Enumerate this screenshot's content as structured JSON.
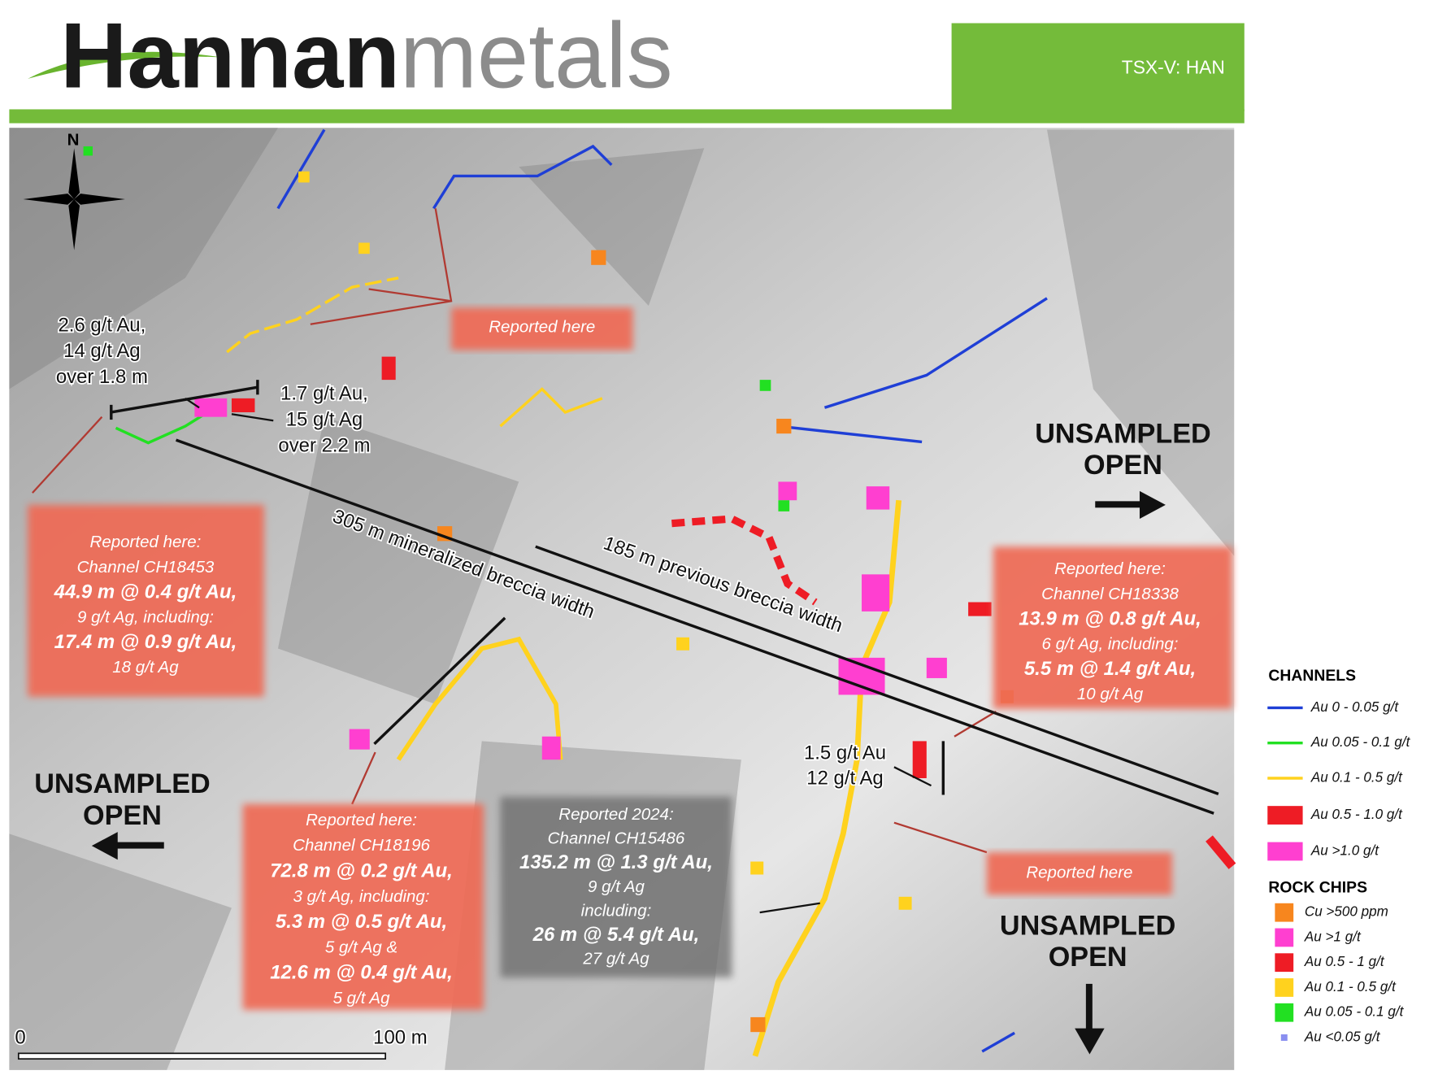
{
  "header": {
    "logo_bold": "Hannan",
    "logo_light": "metals",
    "ticker": "TSX-V: HAN"
  },
  "north": "N",
  "assays": [
    {
      "lines": [
        "2.6 g/t Au,",
        "14 g/t Ag",
        "over 1.8 m"
      ]
    },
    {
      "lines": [
        "1.7 g/t Au,",
        "15 g/t Ag",
        "over 2.2 m"
      ]
    },
    {
      "lines": [
        "1.5 g/t Au",
        "12 g/t Ag"
      ]
    }
  ],
  "reported": [
    {
      "lines": [
        "Reported here"
      ]
    },
    {
      "lines": [
        "Reported here:",
        "Channel CH18453",
        "44.9 m @ 0.4 g/t Au,",
        "9 g/t Ag, including:",
        "17.4 m @ 0.9 g/t Au,",
        "18 g/t Ag"
      ]
    },
    {
      "lines": [
        "Reported here:",
        "Channel CH18338",
        "13.9 m @ 0.8 g/t Au,",
        "6 g/t Ag, including:",
        "5.5 m @ 1.4 g/t Au,",
        "10 g/t Ag"
      ]
    },
    {
      "lines": [
        "Reported here:",
        "Channel CH18196",
        "72.8 m @ 0.2 g/t Au,",
        "3 g/t Ag, including:",
        "5.3 m @ 0.5 g/t Au,",
        "5 g/t Ag &",
        "12.6 m @ 0.4 g/t Au,",
        "5 g/t Ag"
      ]
    },
    {
      "lines": [
        "Reported 2024:",
        "Channel CH15486",
        "135.2 m @ 1.3 g/t Au,",
        "9 g/t Ag",
        "including:",
        "26 m @ 5.4 g/t Au,",
        "27 g/t Ag"
      ]
    },
    {
      "lines": [
        "Reported here"
      ]
    }
  ],
  "widths": [
    "305 m mineralized breccia width",
    "185 m previous breccia width"
  ],
  "open_labels": [
    {
      "lines": [
        "UNSAMPLED",
        "OPEN"
      ]
    },
    {
      "lines": [
        "UNSAMPLED",
        "OPEN"
      ]
    },
    {
      "lines": [
        "UNSAMPLED",
        "OPEN"
      ]
    }
  ],
  "legend": {
    "channels_title": "CHANNELS",
    "channels": [
      {
        "label": "Au 0 - 0.05 g/t",
        "color": "#1f3fd6"
      },
      {
        "label": "Au 0.05 - 0.1 g/t",
        "color": "#22e022"
      },
      {
        "label": "Au 0.1 - 0.5 g/t",
        "color": "#ffd21e"
      },
      {
        "label": "Au 0.5 - 1.0 g/t",
        "color": "#ee1c25"
      },
      {
        "label": "Au >1.0 g/t",
        "color": "#ff3fd0"
      }
    ],
    "rock_chips_title": "ROCK CHIPS",
    "rock_chips": [
      {
        "label": "Cu >500 ppm",
        "color": "#f7861e"
      },
      {
        "label": "Au >1 g/t",
        "color": "#ff3fd0"
      },
      {
        "label": "Au 0.5 - 1 g/t",
        "color": "#ee1c25"
      },
      {
        "label": "Au 0.1 - 0.5 g/t",
        "color": "#ffd21e"
      },
      {
        "label": "Au 0.05 - 0.1 g/t",
        "color": "#22e022"
      },
      {
        "label": "Au <0.05 g/t",
        "color": "#8a8ff0"
      }
    ]
  },
  "scale_bar": {
    "start": "0",
    "end": "100 m"
  }
}
